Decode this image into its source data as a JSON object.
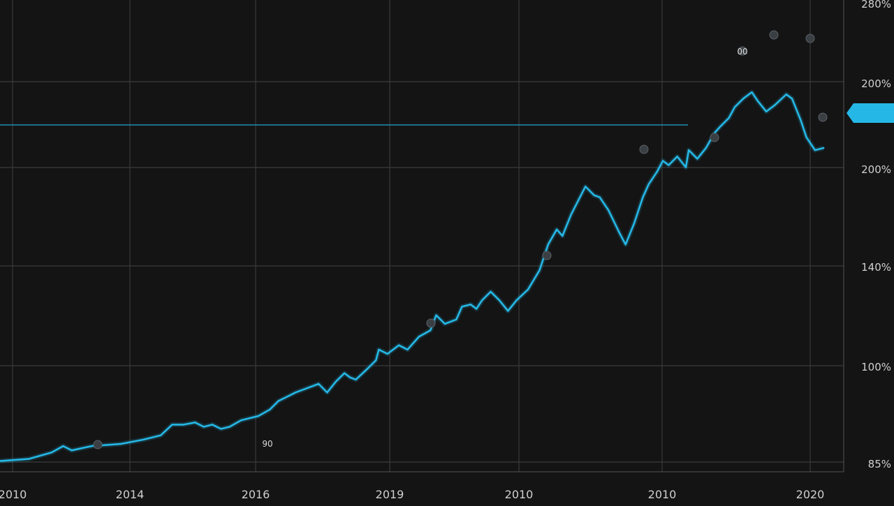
{
  "chart_data": {
    "type": "line",
    "title": "",
    "xlabel": "",
    "ylabel": "",
    "x_tick_labels": [
      "2010",
      "2014",
      "2016",
      "2019",
      "2010",
      "2010",
      "2020"
    ],
    "y_tick_labels": [
      "85%",
      "100%",
      "140%",
      "200%",
      "200%",
      "280%"
    ],
    "current_value_label": "",
    "annotations": [
      "90",
      "00"
    ],
    "grid": true,
    "colors": {
      "line": "#25b8e6",
      "reference": "#1f8fb3",
      "background": "#141414",
      "grid": "#3a3a3a"
    },
    "series": [
      {
        "values": [
          [
            0.0,
            85
          ],
          [
            0.5,
            86
          ],
          [
            0.9,
            89
          ],
          [
            1.1,
            92
          ],
          [
            1.25,
            90
          ],
          [
            1.6,
            92
          ],
          [
            2.1,
            93
          ],
          [
            2.5,
            95
          ],
          [
            2.8,
            97
          ],
          [
            3.0,
            102
          ],
          [
            3.2,
            102
          ],
          [
            3.4,
            103
          ],
          [
            3.55,
            101
          ],
          [
            3.7,
            102
          ],
          [
            3.85,
            100
          ],
          [
            4.0,
            101
          ],
          [
            4.2,
            104
          ],
          [
            4.5,
            106
          ],
          [
            4.7,
            109
          ],
          [
            4.85,
            113
          ],
          [
            5.0,
            115
          ],
          [
            5.15,
            117
          ],
          [
            5.35,
            119
          ],
          [
            5.55,
            121
          ],
          [
            5.7,
            117
          ],
          [
            5.85,
            122
          ],
          [
            6.0,
            126
          ],
          [
            6.1,
            124
          ],
          [
            6.2,
            123
          ],
          [
            6.4,
            128
          ],
          [
            6.55,
            132
          ],
          [
            6.6,
            137
          ],
          [
            6.75,
            135
          ],
          [
            6.95,
            139
          ],
          [
            7.1,
            137
          ],
          [
            7.3,
            143
          ],
          [
            7.5,
            146
          ],
          [
            7.6,
            153
          ],
          [
            7.75,
            149
          ],
          [
            7.95,
            151
          ],
          [
            8.05,
            157
          ],
          [
            8.2,
            158
          ],
          [
            8.3,
            156
          ],
          [
            8.4,
            160
          ],
          [
            8.55,
            164
          ],
          [
            8.7,
            160
          ],
          [
            8.85,
            155
          ],
          [
            9.0,
            160
          ],
          [
            9.2,
            165
          ],
          [
            9.4,
            174
          ],
          [
            9.55,
            186
          ],
          [
            9.7,
            193
          ],
          [
            9.8,
            190
          ],
          [
            9.95,
            200
          ],
          [
            10.2,
            213
          ],
          [
            10.35,
            209
          ],
          [
            10.45,
            208
          ],
          [
            10.6,
            202
          ],
          [
            10.8,
            191
          ],
          [
            10.9,
            186
          ],
          [
            11.05,
            196
          ],
          [
            11.2,
            208
          ],
          [
            11.3,
            214
          ],
          [
            11.45,
            220
          ],
          [
            11.55,
            225
          ],
          [
            11.65,
            223
          ],
          [
            11.8,
            227
          ],
          [
            11.95,
            222
          ],
          [
            12.0,
            230
          ],
          [
            12.15,
            226
          ],
          [
            12.3,
            231
          ],
          [
            12.45,
            238
          ],
          [
            12.55,
            241
          ],
          [
            12.7,
            245
          ],
          [
            12.8,
            250
          ],
          [
            12.95,
            254
          ],
          [
            13.1,
            257
          ],
          [
            13.2,
            253
          ],
          [
            13.35,
            248
          ],
          [
            13.5,
            251
          ],
          [
            13.7,
            256
          ],
          [
            13.8,
            254
          ],
          [
            13.95,
            244
          ],
          [
            14.05,
            236
          ],
          [
            14.2,
            230
          ],
          [
            14.35,
            231
          ]
        ]
      }
    ]
  }
}
